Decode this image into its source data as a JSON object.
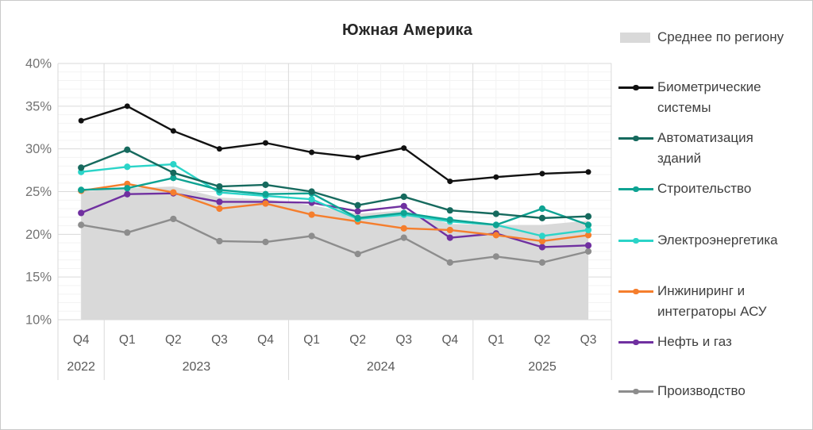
{
  "window": {
    "background": "#ffffff",
    "border_color": "#c9c9c9"
  },
  "chart_data": {
    "type": "line",
    "title": "Южная Америка",
    "categories": [
      "Q4",
      "Q1",
      "Q2",
      "Q3",
      "Q4",
      "Q1",
      "Q2",
      "Q3",
      "Q4",
      "Q1",
      "Q2",
      "Q3"
    ],
    "year_groups": [
      {
        "label": "2022",
        "span": 1
      },
      {
        "label": "2023",
        "span": 4
      },
      {
        "label": "2024",
        "span": 4
      },
      {
        "label": "2025",
        "span": 3
      }
    ],
    "y_axis": {
      "min": 10,
      "max": 40,
      "major_step": 5,
      "minor_step": 1,
      "unit": "%",
      "tick_labels": [
        "40%",
        "35%",
        "30%",
        "25%",
        "20%",
        "15%",
        "10%"
      ]
    },
    "grid": {
      "minor_color": "#f3f3f3",
      "major_color": "#dadada",
      "visible": true
    },
    "area_series": {
      "name": "Среднее по региону",
      "color": "#d9d9d9",
      "values": [
        25.0,
        25.4,
        25.6,
        24.3,
        24.1,
        23.4,
        22.4,
        22.8,
        21.2,
        21.1,
        21.1,
        21.6
      ]
    },
    "series": [
      {
        "name": "Биометрические системы",
        "color": "#111111",
        "values": [
          33.3,
          35.0,
          32.1,
          30.0,
          30.7,
          29.6,
          29.0,
          30.1,
          26.2,
          26.7,
          27.1,
          27.3
        ]
      },
      {
        "name": "Автоматизация зданий",
        "color": "#166a5e",
        "values": [
          27.8,
          29.9,
          27.2,
          25.6,
          25.8,
          25.0,
          23.4,
          24.4,
          22.8,
          22.4,
          21.9,
          22.1
        ]
      },
      {
        "name": "Строительство",
        "color": "#0ea393",
        "values": [
          25.2,
          25.4,
          26.6,
          25.2,
          24.7,
          24.8,
          21.9,
          22.5,
          21.7,
          21.1,
          23.0,
          21.1
        ]
      },
      {
        "name": "Электроэнергетика",
        "color": "#2bd4c8",
        "values": [
          27.3,
          27.9,
          28.2,
          24.9,
          24.5,
          24.1,
          21.8,
          22.3,
          21.5,
          21.1,
          19.8,
          20.5
        ]
      },
      {
        "name": "Инжиниринг и интеграторы АСУ",
        "color": "#f57e2d",
        "values": [
          25.1,
          25.9,
          24.9,
          23.0,
          23.6,
          22.3,
          21.5,
          20.7,
          20.5,
          19.9,
          19.2,
          19.9
        ]
      },
      {
        "name": "Нефть и газ",
        "color": "#7030a0",
        "values": [
          22.5,
          24.7,
          24.8,
          23.8,
          23.8,
          23.7,
          22.7,
          23.3,
          19.6,
          20.1,
          18.5,
          18.7
        ]
      },
      {
        "name": "Производство",
        "color": "#8d8d8d",
        "values": [
          21.1,
          20.2,
          21.8,
          19.2,
          19.1,
          19.8,
          17.7,
          19.6,
          16.7,
          17.4,
          16.7,
          18.0
        ]
      }
    ],
    "axis_text_color": "#737373",
    "x_axis_text_color": "#595959"
  },
  "legend": {
    "items": [
      {
        "label": "Среднее по региону",
        "color": "#d9d9d9",
        "marker": "area"
      },
      {
        "label": "Биометрические системы",
        "color": "#111111",
        "marker": "line"
      },
      {
        "label": "Автоматизация зданий",
        "color": "#166a5e",
        "marker": "line"
      },
      {
        "label": "Строительство",
        "color": "#0ea393",
        "marker": "line"
      },
      {
        "label": "Электроэнергетика",
        "color": "#2bd4c8",
        "marker": "line"
      },
      {
        "label": "Инжиниринг и интеграторы АСУ",
        "color": "#f57e2d",
        "marker": "line"
      },
      {
        "label": "Нефть и газ",
        "color": "#7030a0",
        "marker": "line"
      },
      {
        "label": "Производство",
        "color": "#8d8d8d",
        "marker": "line"
      }
    ]
  }
}
